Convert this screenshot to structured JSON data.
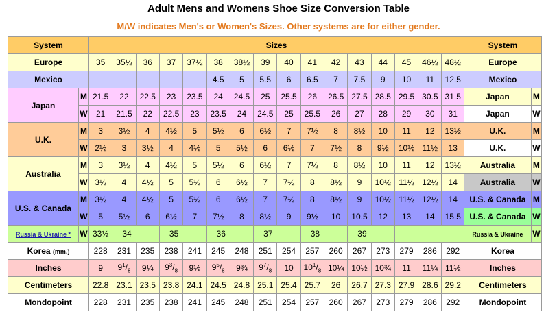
{
  "title": "Adult Mens and Womens Shoe Size Conversion Table",
  "subtitle": "M/W indicates Men's or Women's Sizes. Other systems are for either gender.",
  "header": {
    "system": "System",
    "sizes": "Sizes"
  },
  "colors": {
    "header": "#ffcc66",
    "europe": "#ffffcc",
    "mexico": "#ccccff",
    "japan": "#ffccff",
    "uk": "#ffcc99",
    "australia": "#ffffcc",
    "australia_w": "#c8c8c8",
    "us_m": "#9999ff",
    "us_w": "#99ff99",
    "russia": "#ccff99",
    "korea": "#ffffff",
    "inches": "#ffcccc",
    "centimeters": "#ffffcc",
    "mondopoint": "#ffffff",
    "subtitle": "#e3791d",
    "header_text": "#1a1aa8"
  },
  "rows": [
    {
      "label": "Europe",
      "color": "europe",
      "values": [
        "35",
        "35½",
        "36",
        "37",
        "37½",
        "38",
        "38½",
        "39",
        "40",
        "41",
        "42",
        "43",
        "44",
        "45",
        "46½",
        "48½"
      ]
    },
    {
      "label": "Mexico",
      "color": "mexico",
      "values": [
        "",
        "",
        "",
        "",
        "",
        "4.5",
        "5",
        "5.5",
        "6",
        "6.5",
        "7",
        "7.5",
        "9",
        "10",
        "11",
        "12.5"
      ]
    },
    {
      "label": "Japan",
      "g": "M",
      "color": "japan",
      "rcolor": "europe",
      "values": [
        "21.5",
        "22",
        "22.5",
        "23",
        "23.5",
        "24",
        "24.5",
        "25",
        "25.5",
        "26",
        "26.5",
        "27.5",
        "28.5",
        "29.5",
        "30.5",
        "31.5"
      ]
    },
    {
      "label": "Japan",
      "g": "W",
      "color": "japan",
      "rcolor": "korea",
      "values": [
        "21",
        "21.5",
        "22",
        "22.5",
        "23",
        "23.5",
        "24",
        "24.5",
        "25",
        "25.5",
        "26",
        "27",
        "28",
        "29",
        "30",
        "31"
      ]
    },
    {
      "label": "U.K.",
      "g": "M",
      "color": "uk",
      "rcolor": "uk",
      "values": [
        "3",
        "3½",
        "4",
        "4½",
        "5",
        "5½",
        "6",
        "6½",
        "7",
        "7½",
        "8",
        "8½",
        "10",
        "11",
        "12",
        "13½"
      ]
    },
    {
      "label": "U.K.",
      "g": "W",
      "color": "uk",
      "rcolor": "korea",
      "values": [
        "2½",
        "3",
        "3½",
        "4",
        "4½",
        "5",
        "5½",
        "6",
        "6½",
        "7",
        "7½",
        "8",
        "9½",
        "10½",
        "11½",
        "13"
      ]
    },
    {
      "label": "Australia",
      "g": "M",
      "color": "australia",
      "rcolor": "australia",
      "values": [
        "3",
        "3½",
        "4",
        "4½",
        "5",
        "5½",
        "6",
        "6½",
        "7",
        "7½",
        "8",
        "8½",
        "10",
        "11",
        "12",
        "13½"
      ]
    },
    {
      "label": "Australia",
      "g": "W",
      "color": "australia",
      "rcolor": "australia_w",
      "values": [
        "3½",
        "4",
        "4½",
        "5",
        "5½",
        "6",
        "6½",
        "7",
        "7½",
        "8",
        "8½",
        "9",
        "10½",
        "11½",
        "12½",
        "14"
      ]
    },
    {
      "label": "U.S. & Canada",
      "g": "M",
      "color": "us_m",
      "rcolor": "us_m",
      "values": [
        "3½",
        "4",
        "4½",
        "5",
        "5½",
        "6",
        "6½",
        "7",
        "7½",
        "8",
        "8½",
        "9",
        "10½",
        "11½",
        "12½",
        "14"
      ]
    },
    {
      "label": "U.S. & Canada",
      "g": "W",
      "color": "us_m",
      "rcolor": "us_w",
      "values": [
        "5",
        "5½",
        "6",
        "6½",
        "7",
        "7½",
        "8",
        "8½",
        "9",
        "9½",
        "10",
        "10.5",
        "12",
        "13",
        "14",
        "15.5"
      ]
    },
    {
      "label": "Russia & Ukraine *",
      "rlabel": "Russia & Ukraine",
      "g": "W",
      "color": "russia",
      "rcolor": "russia",
      "values": [
        "33½",
        "34",
        "",
        "35",
        "",
        "36",
        "",
        "37",
        "",
        "38",
        "",
        "39",
        "",
        "",
        "",
        ""
      ]
    },
    {
      "label": "Korea",
      "unit": "(mm.)",
      "color": "korea",
      "values": [
        "228",
        "231",
        "235",
        "238",
        "241",
        "245",
        "248",
        "251",
        "254",
        "257",
        "260",
        "267",
        "273",
        "279",
        "286",
        "292"
      ]
    },
    {
      "label": "Inches",
      "color": "inches",
      "values": [
        "9",
        "9 1/8",
        "9¼",
        "9 3/8",
        "9½",
        "9 5/8",
        "9¾",
        "9 7/8",
        "10",
        "10 1/8",
        "10¼",
        "10½",
        "10¾",
        "11",
        "11¼",
        "11½"
      ]
    },
    {
      "label": "Centimeters",
      "color": "centimeters",
      "values": [
        "22.8",
        "23.1",
        "23.5",
        "23.8",
        "24.1",
        "24.5",
        "24.8",
        "25.1",
        "25.4",
        "25.7",
        "26",
        "26.7",
        "27.3",
        "27.9",
        "28.6",
        "29.2"
      ]
    },
    {
      "label": "Mondopoint",
      "color": "mondopoint",
      "values": [
        "228",
        "231",
        "235",
        "238",
        "241",
        "245",
        "248",
        "251",
        "254",
        "257",
        "260",
        "267",
        "273",
        "279",
        "286",
        "292"
      ]
    }
  ]
}
